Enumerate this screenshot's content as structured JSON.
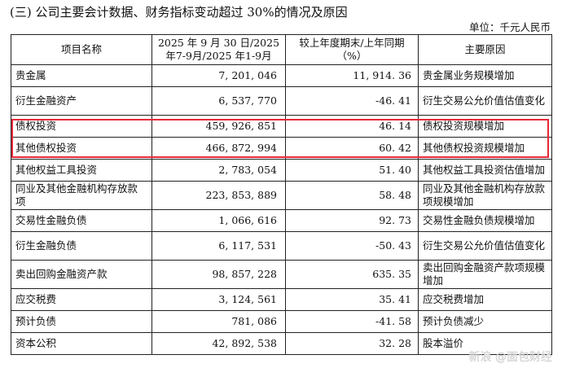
{
  "title": "(三) 公司主要会计数据、财务指标变动超过 30%的情况及原因",
  "unit": "单位：千元人民币",
  "headers": {
    "name": "项目名称",
    "period": "2025 年 9 月 30 日/2025 年7-9月/2025 年1-9月",
    "change": "较上年度期末/上年同期（%）",
    "reason": "主要原因"
  },
  "rows": [
    {
      "name": "贵金属",
      "value": "7, 201, 046",
      "change": "11, 914. 36",
      "reason": "贵金属业务规模增加"
    },
    {
      "name": "衍生金融资产",
      "value": "6, 537, 770",
      "change": "-46. 41",
      "reason": "衍生交易公允价值估值变化"
    },
    {
      "name": "债权投资",
      "value": "459, 926, 851",
      "change": "46. 14",
      "reason": "债权投资规模增加"
    },
    {
      "name": "其他债权投资",
      "value": "466, 872, 994",
      "change": "60. 42",
      "reason": "其他债权投资规模增加"
    },
    {
      "name": "其他权益工具投资",
      "value": "2, 783, 054",
      "change": "51. 40",
      "reason": "其他权益工具投资估值增加"
    },
    {
      "name": "同业及其他金融机构存放款项",
      "value": "223, 853, 889",
      "change": "58. 48",
      "reason": "同业及其他金融机构存放款项规模增加"
    },
    {
      "name": "交易性金融负债",
      "value": "1, 066, 616",
      "change": "92. 73",
      "reason": "交易性金融负债规模增加"
    },
    {
      "name": "衍生金融负债",
      "value": "6, 117, 531",
      "change": "-50. 43",
      "reason": "衍生交易公允价值估值变化"
    },
    {
      "name": "卖出回购金融资产款",
      "value": "98, 857, 228",
      "change": "635. 35",
      "reason": "卖出回购金融资产款项规模增加"
    },
    {
      "name": "应交税费",
      "value": "3, 124, 561",
      "change": "35. 41",
      "reason": "应交税费增加"
    },
    {
      "name": "预计负债",
      "value": "781, 086",
      "change": "-41. 58",
      "reason": "预计负债减少"
    },
    {
      "name": "资本公积",
      "value": "42, 892, 538",
      "change": "32. 28",
      "reason": "股本溢价"
    }
  ],
  "watermark": "新浪 @面包财经",
  "highlight_color": "#e8283a"
}
